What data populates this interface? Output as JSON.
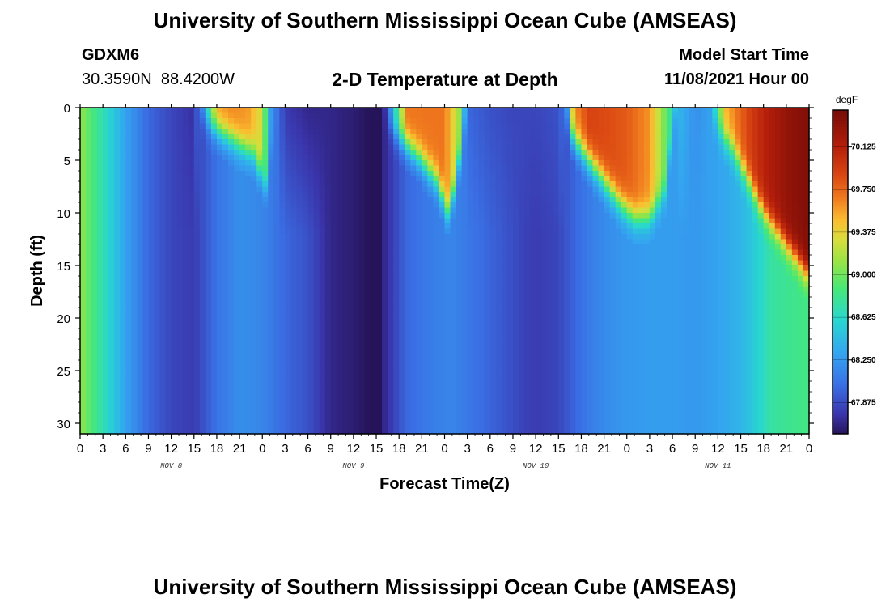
{
  "header": {
    "title": "University of Southern Mississippi Ocean Cube (AMSEAS)",
    "station": "GDXM6",
    "location": "30.3590N  88.4200W",
    "plot_title": "2-D Temperature at Depth",
    "model_start_label": "Model Start Time",
    "model_start_value": "11/08/2021 Hour 00"
  },
  "footer": {
    "title": "University of Southern Mississippi Ocean Cube (AMSEAS)"
  },
  "chart_data": {
    "type": "heatmap",
    "title": "2-D Temperature at Depth",
    "xlabel": "Forecast Time(Z)",
    "ylabel": "Depth (ft)",
    "x_unit": "forecast hours",
    "xlim": [
      0,
      96
    ],
    "ylim": [
      0,
      31
    ],
    "x_ticks": [
      0,
      3,
      6,
      9,
      12,
      15,
      18,
      21,
      24,
      27,
      30,
      33,
      36,
      39,
      42,
      45,
      48,
      51,
      54,
      57,
      60,
      63,
      66,
      69,
      72,
      75,
      78,
      81,
      84,
      87,
      90,
      93,
      96
    ],
    "x_tick_labels": [
      "0",
      "3",
      "6",
      "9",
      "12",
      "15",
      "18",
      "21",
      "0",
      "3",
      "6",
      "9",
      "12",
      "15",
      "18",
      "21",
      "0",
      "3",
      "6",
      "9",
      "12",
      "15",
      "18",
      "21",
      "0",
      "3",
      "6",
      "9",
      "12",
      "15",
      "18",
      "21",
      "0"
    ],
    "y_ticks": [
      0,
      5,
      10,
      15,
      20,
      25,
      30
    ],
    "y_tick_labels": [
      "0",
      "5",
      "10",
      "15",
      "20",
      "25",
      "30"
    ],
    "day_labels": [
      {
        "text": "NOV 8",
        "hour": 12
      },
      {
        "text": "NOV 9",
        "hour": 36
      },
      {
        "text": "NOV 10",
        "hour": 60
      },
      {
        "text": "NOV 11",
        "hour": 84
      }
    ],
    "colorbar": {
      "unit": "degF",
      "range": [
        67.6,
        70.45
      ],
      "ticks": [
        67.875,
        68.25,
        68.625,
        69.0,
        69.375,
        69.75,
        70.125
      ],
      "tick_labels": [
        "67.875",
        "68.250",
        "68.625",
        "69.000",
        "69.375",
        "69.750",
        "70.125"
      ]
    },
    "surface_temp_degF": [
      [
        0,
        69.1
      ],
      [
        3,
        68.7
      ],
      [
        6,
        68.3
      ],
      [
        9,
        68.0
      ],
      [
        12,
        67.85
      ],
      [
        15,
        67.75
      ],
      [
        16,
        68.2
      ],
      [
        18,
        69.6
      ],
      [
        20,
        69.65
      ],
      [
        22,
        69.6
      ],
      [
        24,
        69.3
      ],
      [
        25,
        68.3
      ],
      [
        27,
        67.8
      ],
      [
        30,
        67.7
      ],
      [
        33,
        67.7
      ],
      [
        36,
        67.65
      ],
      [
        38,
        67.6
      ],
      [
        39,
        67.5
      ],
      [
        40,
        67.7
      ],
      [
        41,
        68.3
      ],
      [
        43,
        69.7
      ],
      [
        46,
        69.7
      ],
      [
        48,
        69.7
      ],
      [
        50,
        69.1
      ],
      [
        51,
        68.0
      ],
      [
        54,
        67.9
      ],
      [
        57,
        67.85
      ],
      [
        60,
        67.85
      ],
      [
        63,
        67.9
      ],
      [
        64,
        68.1
      ],
      [
        65,
        69.6
      ],
      [
        67,
        69.9
      ],
      [
        70,
        69.85
      ],
      [
        72,
        69.8
      ],
      [
        75,
        69.6
      ],
      [
        77,
        69.0
      ],
      [
        79,
        68.4
      ],
      [
        81,
        68.2
      ],
      [
        83,
        68.3
      ],
      [
        85,
        69.5
      ],
      [
        88,
        69.9
      ],
      [
        90,
        70.1
      ],
      [
        93,
        70.3
      ],
      [
        96,
        70.4
      ]
    ],
    "deep_temp_degF": [
      [
        0,
        69.1
      ],
      [
        3,
        68.7
      ],
      [
        6,
        68.3
      ],
      [
        9,
        68.0
      ],
      [
        12,
        67.85
      ],
      [
        15,
        67.8
      ],
      [
        18,
        68.05
      ],
      [
        21,
        68.2
      ],
      [
        24,
        68.15
      ],
      [
        27,
        68.0
      ],
      [
        30,
        67.9
      ],
      [
        33,
        67.7
      ],
      [
        36,
        67.65
      ],
      [
        38,
        67.6
      ],
      [
        39,
        67.5
      ],
      [
        40,
        67.7
      ],
      [
        43,
        68.0
      ],
      [
        46,
        68.1
      ],
      [
        49,
        68.15
      ],
      [
        52,
        68.05
      ],
      [
        55,
        67.95
      ],
      [
        58,
        67.85
      ],
      [
        60,
        67.8
      ],
      [
        63,
        67.85
      ],
      [
        66,
        68.05
      ],
      [
        69,
        68.18
      ],
      [
        72,
        68.25
      ],
      [
        75,
        68.27
      ],
      [
        78,
        68.27
      ],
      [
        81,
        68.25
      ],
      [
        84,
        68.3
      ],
      [
        87,
        68.4
      ],
      [
        89,
        68.55
      ],
      [
        91,
        68.75
      ],
      [
        93,
        68.8
      ],
      [
        96,
        68.85
      ]
    ],
    "warm_surface_layer_bottom_ft": [
      [
        15.5,
        0
      ],
      [
        17,
        1.5
      ],
      [
        19,
        2.5
      ],
      [
        21,
        3.5
      ],
      [
        23,
        4.5
      ],
      [
        24.5,
        7.5
      ],
      [
        25.5,
        2
      ],
      [
        26.5,
        0
      ],
      [
        39.5,
        0
      ],
      [
        41,
        2
      ],
      [
        43,
        3.5
      ],
      [
        45,
        5
      ],
      [
        47,
        7
      ],
      [
        48.5,
        10
      ],
      [
        49.5,
        7
      ],
      [
        50.5,
        2
      ],
      [
        51.5,
        0
      ],
      [
        63.5,
        0
      ],
      [
        65,
        3
      ],
      [
        67,
        5
      ],
      [
        69,
        7
      ],
      [
        71,
        9
      ],
      [
        73,
        10.5
      ],
      [
        75,
        10.5
      ],
      [
        77,
        8
      ],
      [
        78,
        2
      ],
      [
        78.5,
        0
      ],
      [
        83,
        0
      ],
      [
        84,
        2
      ],
      [
        86,
        4
      ],
      [
        88,
        7
      ],
      [
        90,
        10
      ],
      [
        92,
        12
      ],
      [
        94,
        14
      ],
      [
        96,
        16
      ]
    ]
  }
}
